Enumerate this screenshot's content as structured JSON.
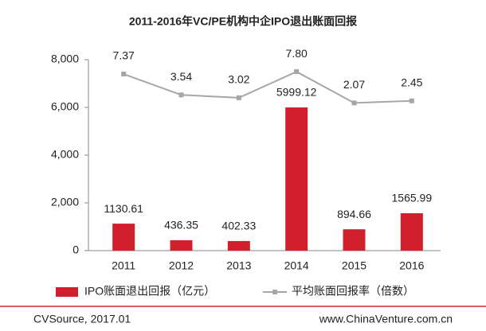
{
  "chart_data": {
    "type": "combo",
    "title": "2011-2016年VC/PE机构中企IPO退出账面回报",
    "categories": [
      "2011",
      "2012",
      "2013",
      "2014",
      "2015",
      "2016"
    ],
    "series": [
      {
        "name": "IPO账面退出回报（亿元）",
        "type": "bar",
        "color": "#d0202e",
        "values": [
          1130.61,
          436.35,
          402.33,
          5999.12,
          894.66,
          1565.99
        ]
      },
      {
        "name": "平均账面回报率（倍数）",
        "type": "line",
        "axis": "y2",
        "color": "#a6a6a6",
        "values": [
          7.37,
          3.54,
          3.02,
          7.8,
          2.07,
          2.45
        ],
        "value_labels": [
          "7.37",
          "3.54",
          "3.02",
          "7.80",
          "2.07",
          "2.45"
        ]
      }
    ],
    "ylim": [
      0,
      8000
    ],
    "yticks": [
      0,
      {
        "value": 2000,
        "label": "2,000"
      },
      {
        "value": 4000,
        "label": "4,000"
      },
      {
        "value": 6000,
        "label": "6,000"
      },
      {
        "value": 8000,
        "label": "8,000"
      }
    ],
    "y2lim": [
      -25,
      10
    ],
    "grid": false,
    "footer": {
      "source": "CVSource, 2017.01",
      "website": "www.ChinaVenture.com.cn"
    }
  }
}
